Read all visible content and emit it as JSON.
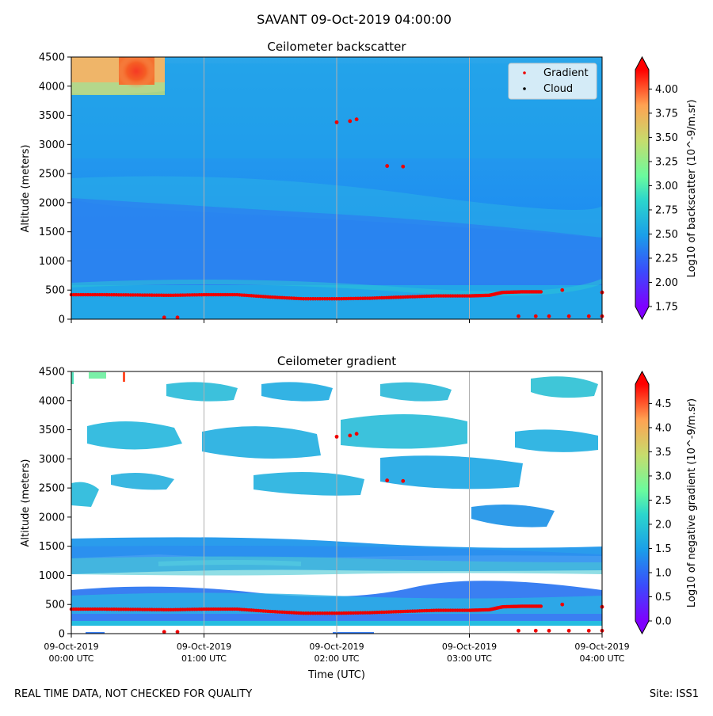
{
  "suptitle": "SAVANT 09-Oct-2019 04:00:00",
  "footer": {
    "left": "REAL TIME DATA, NOT CHECKED FOR QUALITY",
    "right": "Site: ISS1"
  },
  "colors": {
    "gradient_marker": "#ee0000",
    "cloud_marker": "#000000",
    "background_field": "#1fa2ea",
    "gridline": "#b0b0b0"
  },
  "chart_data": [
    {
      "type": "heatmap",
      "title": "Ceilometer backscatter",
      "xlabel": "",
      "ylabel": "Altitude (meters)",
      "xlim_hours": [
        0,
        4
      ],
      "ylim": [
        0,
        4500
      ],
      "yticks": [
        0,
        500,
        1000,
        1500,
        2000,
        2500,
        3000,
        3500,
        4000,
        4500
      ],
      "grid": "vertical at each hour",
      "legend": {
        "position": "top-right",
        "entries": [
          {
            "label": "Gradient",
            "color": "#ee0000"
          },
          {
            "label": "Cloud",
            "color": "#000000"
          }
        ]
      },
      "colorbar": {
        "label": "Log10 of backscatter (10^-9/m.sr)",
        "range": [
          1.75,
          4.2
        ],
        "ticks": [
          "1.75",
          "2.00",
          "2.25",
          "2.50",
          "2.75",
          "3.00",
          "3.25",
          "3.50",
          "3.75",
          "4.00"
        ]
      },
      "gradient_series": {
        "name": "Gradient",
        "points": [
          [
            0.0,
            420
          ],
          [
            0.25,
            420
          ],
          [
            0.5,
            415
          ],
          [
            0.75,
            410
          ],
          [
            1.0,
            420
          ],
          [
            1.25,
            420
          ],
          [
            1.5,
            380
          ],
          [
            1.75,
            350
          ],
          [
            2.0,
            350
          ],
          [
            2.25,
            360
          ],
          [
            2.5,
            380
          ],
          [
            2.75,
            400
          ],
          [
            3.0,
            400
          ],
          [
            3.15,
            410
          ],
          [
            3.25,
            460
          ],
          [
            3.4,
            470
          ],
          [
            3.55,
            470
          ]
        ],
        "isolated_points": [
          [
            3.7,
            500
          ],
          [
            4.0,
            460
          ],
          [
            2.0,
            3380
          ],
          [
            2.1,
            3400
          ],
          [
            2.15,
            3430
          ],
          [
            2.38,
            2630
          ],
          [
            2.5,
            2620
          ],
          [
            0.7,
            30
          ],
          [
            0.8,
            30
          ],
          [
            3.37,
            50
          ],
          [
            3.5,
            50
          ],
          [
            3.6,
            50
          ],
          [
            3.75,
            50
          ],
          [
            3.9,
            50
          ],
          [
            4.0,
            50
          ]
        ]
      }
    },
    {
      "type": "heatmap",
      "title": "Ceilometer gradient",
      "xlabel": "Time (UTC)",
      "ylabel": "Altitude (meters)",
      "xlim_hours": [
        0,
        4
      ],
      "ylim": [
        0,
        4500
      ],
      "yticks": [
        0,
        500,
        1000,
        1500,
        2000,
        2500,
        3000,
        3500,
        4000,
        4500
      ],
      "xtick_labels": [
        [
          "09-Oct-2019",
          "00:00 UTC"
        ],
        [
          "09-Oct-2019",
          "01:00 UTC"
        ],
        [
          "09-Oct-2019",
          "02:00 UTC"
        ],
        [
          "09-Oct-2019",
          "03:00 UTC"
        ],
        [
          "09-Oct-2019",
          "04:00 UTC"
        ]
      ],
      "grid": "vertical at each hour",
      "colorbar": {
        "label": "Log10 of negative gradient (10^-9/m.sr)",
        "range": [
          0.0,
          4.9
        ],
        "ticks": [
          "0.0",
          "0.5",
          "1.0",
          "1.5",
          "2.0",
          "2.5",
          "3.0",
          "3.5",
          "4.0",
          "4.5"
        ]
      },
      "bands_m": [
        [
          200,
          850
        ],
        [
          1150,
          1650
        ],
        [
          2150,
          2800
        ],
        [
          2900,
          3600
        ],
        [
          3900,
          4300
        ]
      ],
      "gradient_series": {
        "name": "Gradient",
        "points": [
          [
            0.0,
            420
          ],
          [
            0.25,
            420
          ],
          [
            0.5,
            415
          ],
          [
            0.75,
            410
          ],
          [
            1.0,
            420
          ],
          [
            1.25,
            420
          ],
          [
            1.5,
            380
          ],
          [
            1.75,
            350
          ],
          [
            2.0,
            350
          ],
          [
            2.25,
            360
          ],
          [
            2.5,
            380
          ],
          [
            2.75,
            400
          ],
          [
            3.0,
            400
          ],
          [
            3.15,
            410
          ],
          [
            3.25,
            460
          ],
          [
            3.4,
            470
          ],
          [
            3.55,
            470
          ]
        ],
        "isolated_points": [
          [
            3.7,
            500
          ],
          [
            4.0,
            460
          ],
          [
            2.0,
            3380
          ],
          [
            2.1,
            3400
          ],
          [
            2.15,
            3430
          ],
          [
            2.38,
            2630
          ],
          [
            2.5,
            2620
          ],
          [
            0.7,
            30
          ],
          [
            0.8,
            30
          ],
          [
            3.37,
            50
          ],
          [
            3.5,
            50
          ],
          [
            3.6,
            50
          ],
          [
            3.75,
            50
          ],
          [
            3.9,
            50
          ],
          [
            4.0,
            50
          ]
        ]
      }
    }
  ]
}
